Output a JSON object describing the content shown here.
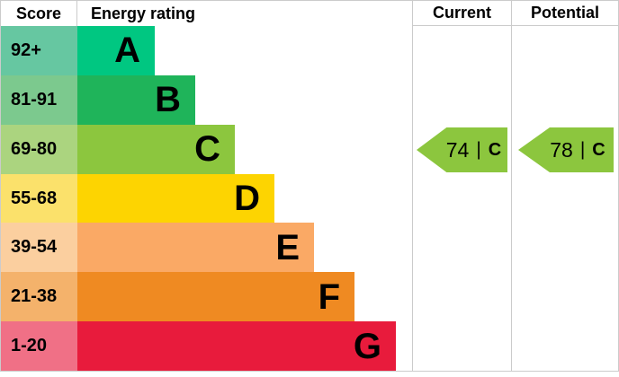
{
  "header": {
    "score": "Score",
    "rating": "Energy rating",
    "current": "Current",
    "potential": "Potential"
  },
  "chart_data": {
    "type": "bar",
    "title": "Energy rating",
    "description": "EPC energy-efficiency rating stair chart with current and potential scores",
    "bands": [
      {
        "label": "A",
        "score_range": "92+",
        "color": "#00C781",
        "tint": "#66C7A1"
      },
      {
        "label": "B",
        "score_range": "81-91",
        "color": "#1FB45A",
        "tint": "#7CC98E"
      },
      {
        "label": "C",
        "score_range": "69-80",
        "color": "#8CC63E",
        "tint": "#ABD47F"
      },
      {
        "label": "D",
        "score_range": "55-68",
        "color": "#FDD401",
        "tint": "#FBE16B"
      },
      {
        "label": "E",
        "score_range": "39-54",
        "color": "#FAA965",
        "tint": "#FBCF9F"
      },
      {
        "label": "F",
        "score_range": "21-38",
        "color": "#EF8A22",
        "tint": "#F4B26B"
      },
      {
        "label": "G",
        "score_range": "1-20",
        "color": "#E81B3C",
        "tint": "#F07086"
      }
    ],
    "current": {
      "value": 74,
      "separator": "|",
      "band": "C",
      "arrow_color": "#8CC63E"
    },
    "potential": {
      "value": 78,
      "separator": "|",
      "band": "C",
      "arrow_color": "#8CC63E"
    }
  },
  "colors": {
    "border": "#CBCBCB",
    "text": "#000000",
    "background": "#FFFFFF"
  }
}
